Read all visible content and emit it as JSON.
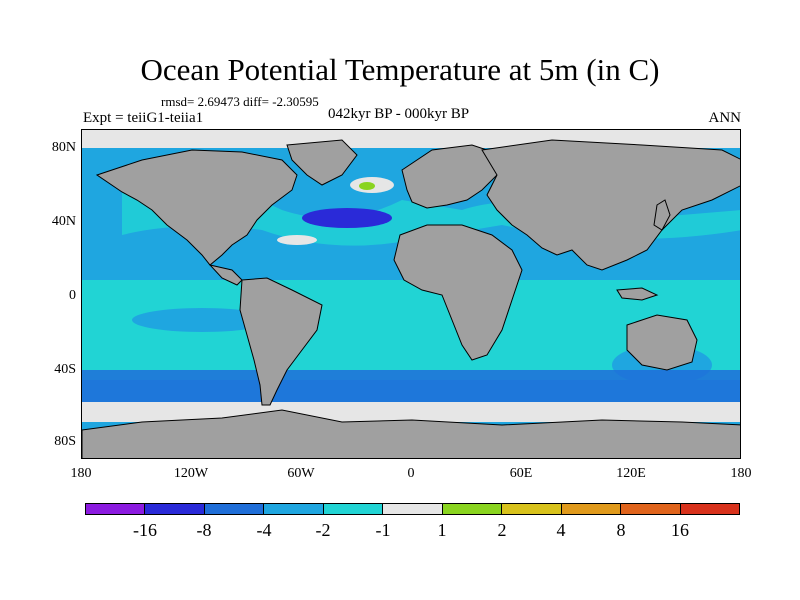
{
  "header": {
    "title": "Ocean Potential Temperature at 5m (in C)",
    "stats": "rmsd= 2.69473 diff= -2.30595",
    "experiment": "Expt = teiiG1-teiia1",
    "period": "042kyr BP - 000kyr BP",
    "season": "ANN"
  },
  "map": {
    "y_ticks": [
      "80N",
      "40N",
      "0",
      "40S",
      "80S"
    ],
    "x_ticks": [
      "180",
      "120W",
      "60W",
      "0",
      "60E",
      "120E",
      "180"
    ],
    "land_color": "#a0a0a0",
    "ice_color": "#e6e6e6"
  },
  "colorbar": {
    "colors": [
      "#8c1be0",
      "#2a2ad8",
      "#1f6ed8",
      "#1fa6e0",
      "#21d4d4",
      "#e6e6e6",
      "#8ad41f",
      "#d8c21c",
      "#e09a1c",
      "#e0641c",
      "#d8321c"
    ],
    "labels": [
      "-16",
      "-8",
      "-4",
      "-2",
      "-1",
      "1",
      "2",
      "4",
      "8",
      "16"
    ]
  }
}
